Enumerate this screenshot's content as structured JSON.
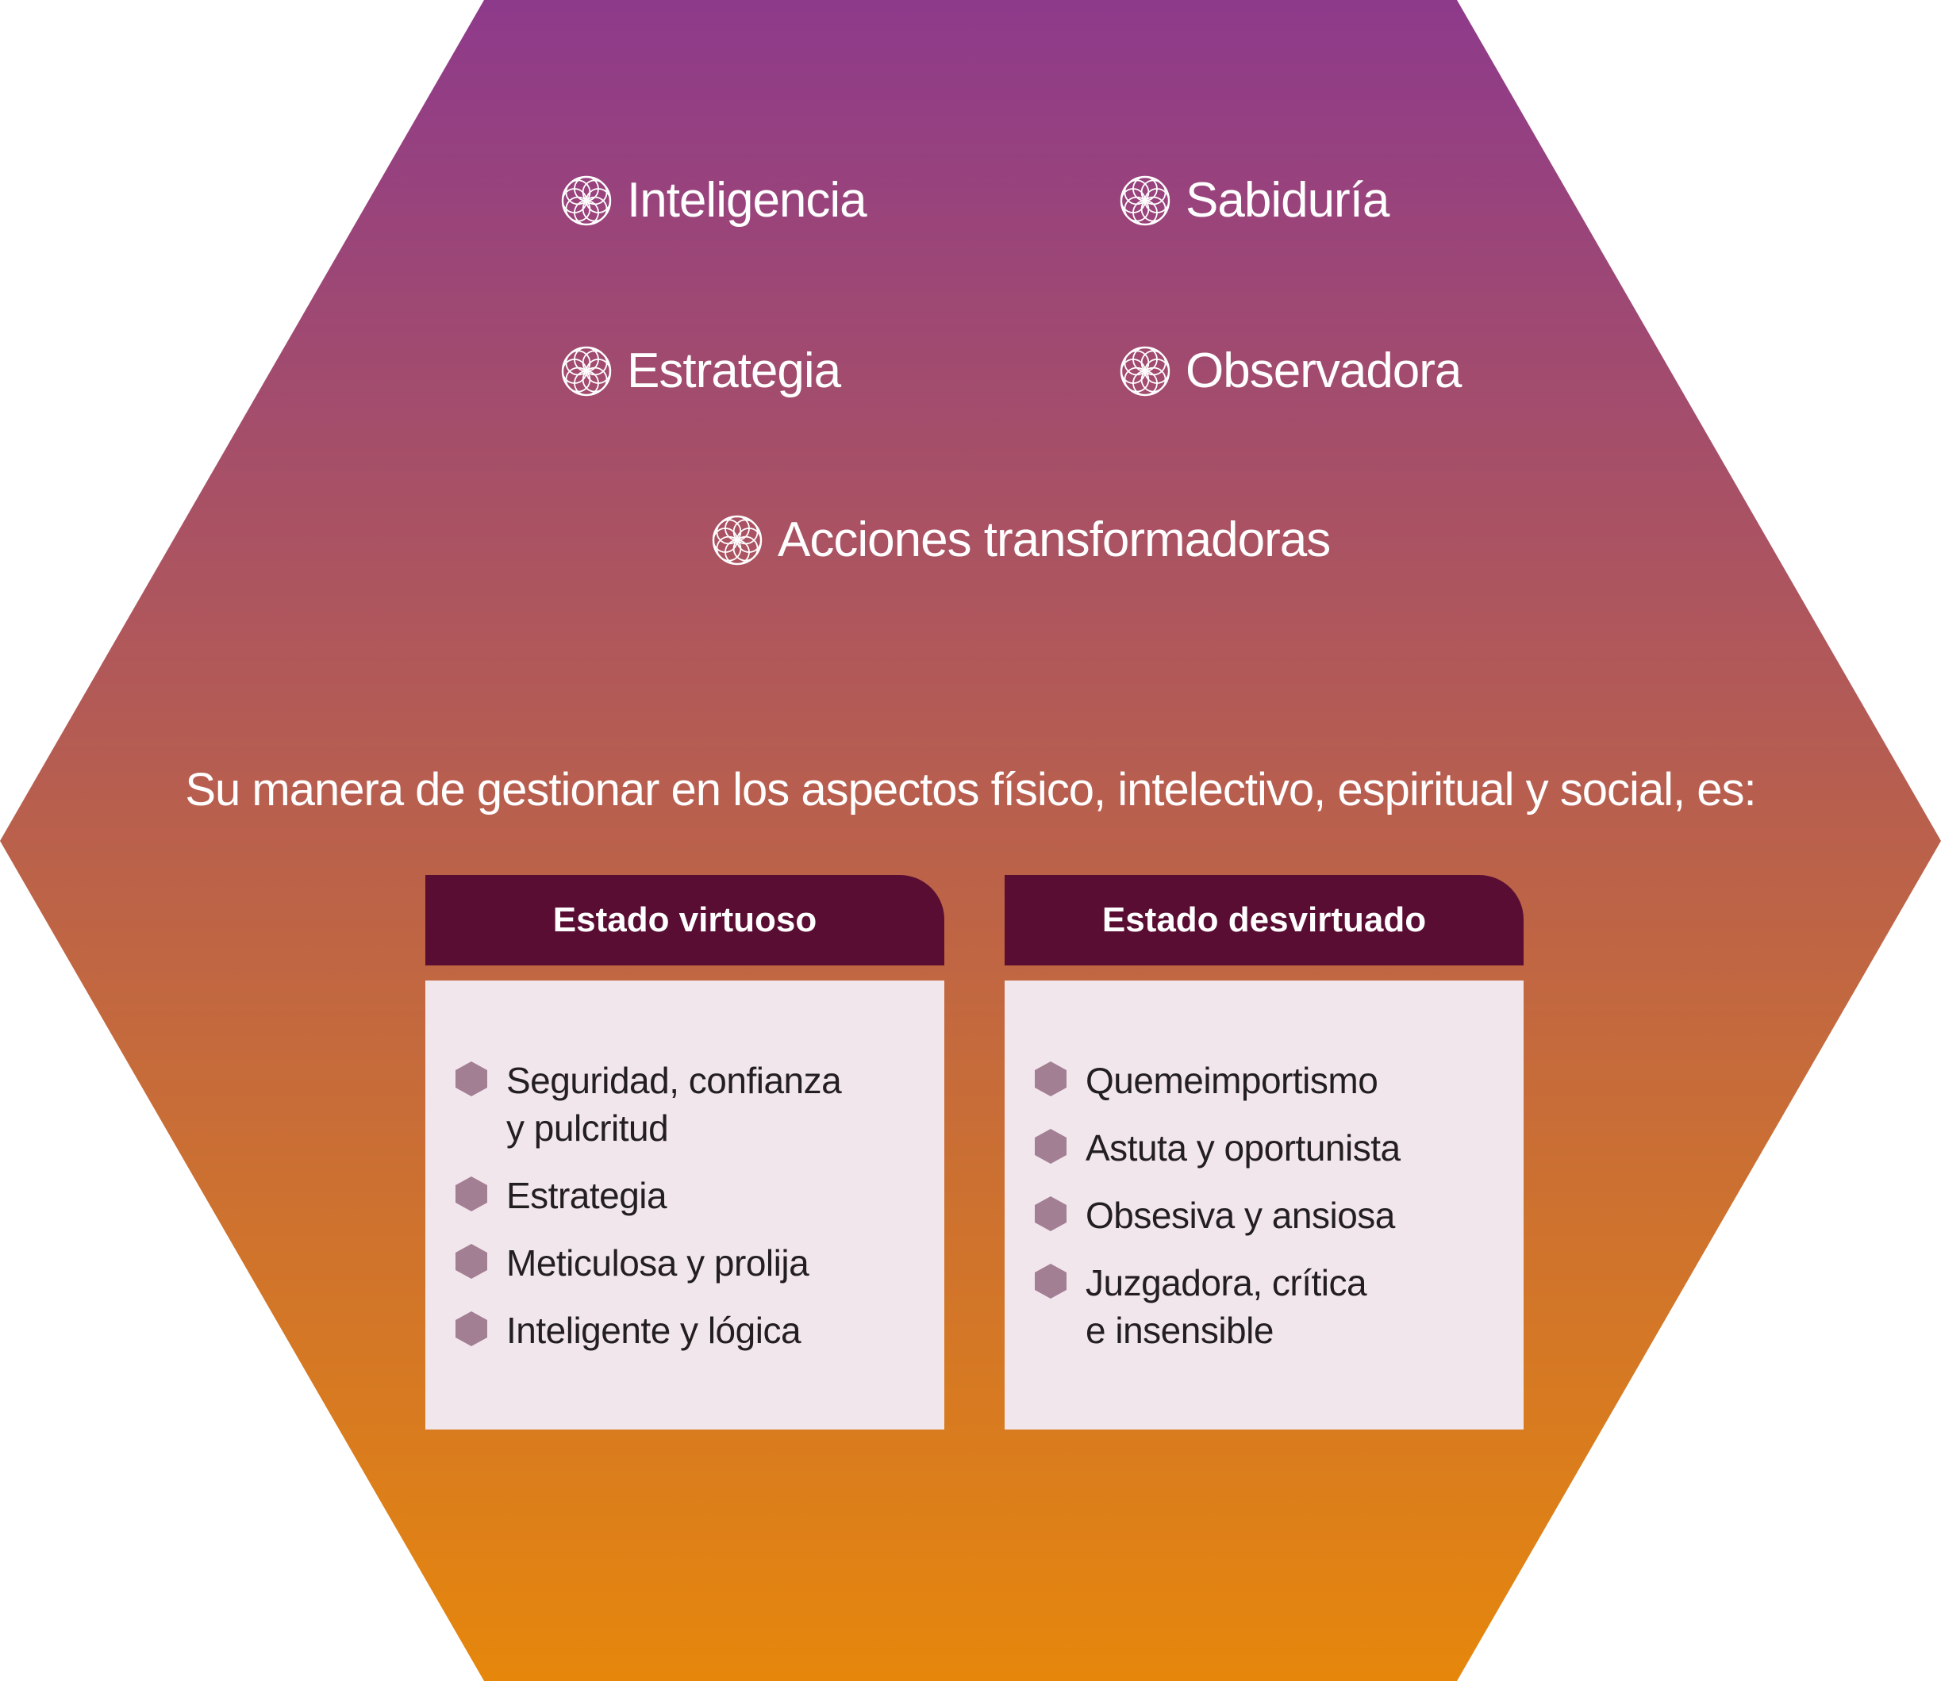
{
  "colors": {
    "gradient_top": "#8e3a8b",
    "gradient_bottom": "#e6870c",
    "header_bg": "#5a0d32",
    "card_bg": "#f2e6ed",
    "bullet": "#a37f93",
    "text_dark": "#231f20",
    "text_light": "#ffffff"
  },
  "traits": [
    {
      "label": "Inteligencia",
      "icon": "flower-of-life-icon"
    },
    {
      "label": "Sabiduría",
      "icon": "flower-of-life-icon"
    },
    {
      "label": "Estrategia",
      "icon": "flower-of-life-icon"
    },
    {
      "label": "Observadora",
      "icon": "flower-of-life-icon"
    },
    {
      "label": "Acciones transformadoras",
      "icon": "flower-of-life-icon"
    }
  ],
  "intro": "Su manera de gestionar en los aspectos físico, intelectivo, espiritual y social, es:",
  "cards": [
    {
      "title": "Estado virtuoso",
      "items": [
        {
          "line1": "Seguridad, confianza",
          "line2": "y pulcritud"
        },
        {
          "line1": "Estrategia",
          "line2": ""
        },
        {
          "line1": "Meticulosa y prolija",
          "line2": ""
        },
        {
          "line1": "Inteligente y lógica",
          "line2": ""
        }
      ]
    },
    {
      "title": "Estado desvirtuado",
      "items": [
        {
          "line1": "Quemeimportismo",
          "line2": ""
        },
        {
          "line1": "Astuta y oportunista",
          "line2": ""
        },
        {
          "line1": "Obsesiva y ansiosa",
          "line2": ""
        },
        {
          "line1": "Juzgadora, crítica",
          "line2": "e insensible"
        }
      ]
    }
  ]
}
